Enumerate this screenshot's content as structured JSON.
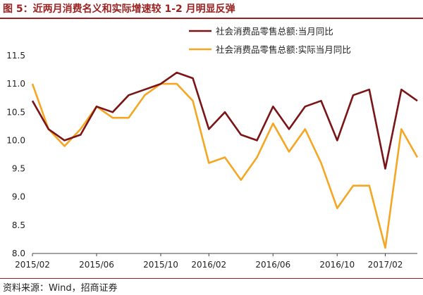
{
  "header": {
    "title": "图 5：近两月消费名义和实际增速较 1-2 月明显反弹"
  },
  "footer": {
    "source": "资料来源：Wind，招商证券"
  },
  "chart_data": {
    "type": "line",
    "x": [
      "2015/02",
      "2015/03",
      "2015/04",
      "2015/05",
      "2015/06",
      "2015/07",
      "2015/08",
      "2015/09",
      "2015/10",
      "2015/11",
      "2015/12",
      "2016/02",
      "2016/03",
      "2016/04",
      "2016/05",
      "2016/06",
      "2016/07",
      "2016/08",
      "2016/09",
      "2016/10",
      "2016/11",
      "2016/12",
      "2017/02",
      "2017/03",
      "2017/04"
    ],
    "xtick_labels": [
      "2015/02",
      "2015/06",
      "2015/10",
      "2016/02",
      "2016/06",
      "2016/10",
      "2017/02"
    ],
    "xtick_indices": [
      0,
      4,
      8,
      11,
      15,
      19,
      22
    ],
    "yticks": [
      8.0,
      8.5,
      9.0,
      9.5,
      10.0,
      10.5,
      11.0,
      11.5
    ],
    "ylim": [
      8.0,
      11.5
    ],
    "grid": false,
    "legend_position": "top-right",
    "series": [
      {
        "name": "社会消费品零售总额:当月同比",
        "color": "#7a1416",
        "values": [
          10.7,
          10.2,
          10.0,
          10.1,
          10.6,
          10.5,
          10.8,
          10.9,
          11.0,
          11.2,
          11.1,
          10.2,
          10.5,
          10.1,
          10.0,
          10.6,
          10.2,
          10.6,
          10.7,
          10.0,
          10.8,
          10.9,
          9.5,
          10.9,
          10.7
        ]
      },
      {
        "name": "社会消费品零售总额:实际当月同比",
        "color": "#f5a623",
        "values": [
          11.0,
          10.2,
          9.9,
          10.2,
          10.6,
          10.4,
          10.4,
          10.8,
          11.0,
          11.0,
          10.7,
          9.6,
          9.7,
          9.3,
          9.7,
          10.3,
          9.8,
          10.2,
          9.6,
          8.8,
          9.2,
          9.2,
          8.1,
          10.2,
          9.7
        ]
      }
    ]
  }
}
